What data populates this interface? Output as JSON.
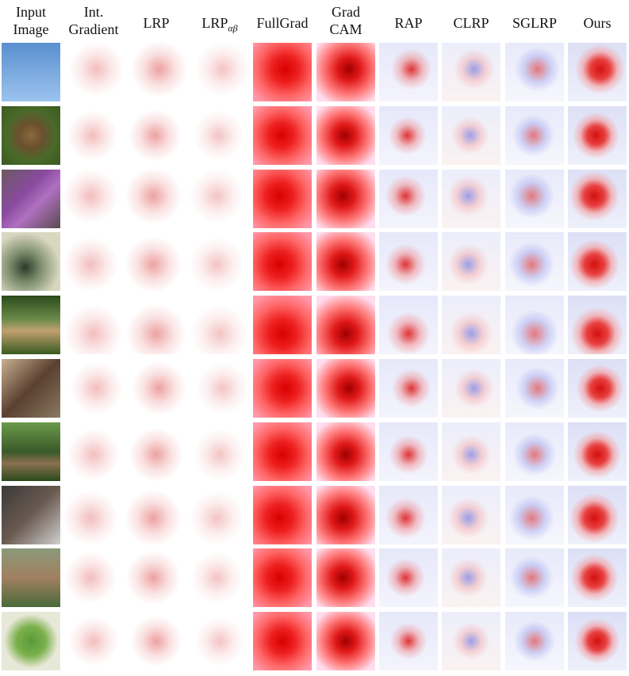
{
  "figure": {
    "columns": [
      {
        "lines": [
          "Input",
          "Image"
        ]
      },
      {
        "lines": [
          "Int.",
          "Gradient"
        ]
      },
      {
        "lines": [
          "LRP"
        ]
      },
      {
        "lines": [
          "LRP"
        ],
        "subscript": "αβ"
      },
      {
        "lines": [
          "FullGrad"
        ]
      },
      {
        "lines": [
          "Grad",
          "CAM"
        ]
      },
      {
        "lines": [
          "RAP"
        ]
      },
      {
        "lines": [
          "CLRP"
        ]
      },
      {
        "lines": [
          "SGLRP"
        ]
      },
      {
        "lines": [
          "Ours"
        ]
      }
    ]
  }
}
